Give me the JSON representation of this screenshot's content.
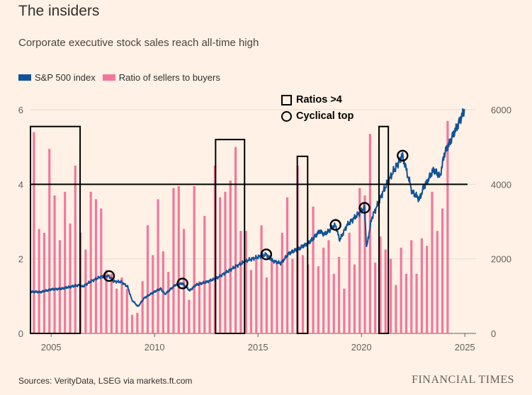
{
  "title": "The insiders",
  "subtitle": "Corporate executive stock sales reach all-time high",
  "legend": {
    "sp500": "S&P 500 index",
    "ratio": "Ratio of sellers to buyers"
  },
  "annotations": {
    "boxes": "Ratios >4",
    "circles": "Cyclical top"
  },
  "source": "Sources: VerityData, LSEG via markets.ft.com",
  "brand": "FINANCIAL TIMES",
  "colors": {
    "background": "#FFF1E5",
    "sp500": "#0F5499",
    "ratio": "#F2779C",
    "annotation": "#000000"
  },
  "chart_data": {
    "type": "bar+line",
    "x_ticks": [
      "2005",
      "2010",
      "2015",
      "2020",
      "2025"
    ],
    "x_range": [
      2004.0,
      2025.5
    ],
    "y_left": {
      "ticks": [
        "0",
        "2",
        "4",
        "6"
      ],
      "range": [
        0,
        6
      ]
    },
    "y_right": {
      "ticks": [
        "0",
        "2000",
        "4000",
        "6000"
      ],
      "range": [
        0,
        6000
      ]
    },
    "reference_line": 4,
    "grid": true,
    "ratio_series": {
      "name": "Ratio of sellers to buyers",
      "start": 2004.167,
      "step": 0.25,
      "values": [
        5.4,
        2.8,
        2.7,
        4.95,
        3.7,
        2.5,
        3.8,
        2.95,
        4.5,
        2.7,
        2.25,
        3.8,
        3.6,
        3.35,
        1.7,
        1.6,
        1.2,
        1.5,
        1.2,
        0.5,
        0.55,
        1.4,
        2.9,
        2.1,
        3.6,
        2.2,
        1.65,
        3.9,
        3.95,
        2.8,
        0.9,
        3.95,
        1.4,
        3.15,
        1.4,
        4.5,
        3.65,
        3.8,
        4.1,
        5.0,
        2.75,
        2.75,
        1.7,
        2.05,
        2.9,
        1.5,
        2.0,
        1.9,
        2.7,
        3.65,
        2.0,
        4.5,
        2.1,
        1.85,
        3.4,
        1.8,
        2.3,
        2.5,
        1.6,
        2.05,
        1.2,
        2.7,
        1.85,
        3.9,
        3.7,
        5.35,
        1.9,
        2.6,
        2.25,
        2.0,
        1.3,
        2.3,
        1.6,
        2.5,
        1.6,
        2.55,
        2.35,
        3.8,
        2.75,
        3.35,
        5.7
      ]
    },
    "sp500_series": {
      "name": "S&P 500 index",
      "points": [
        [
          2004.0,
          1120
        ],
        [
          2004.5,
          1110
        ],
        [
          2005.0,
          1180
        ],
        [
          2005.5,
          1200
        ],
        [
          2006.0,
          1260
        ],
        [
          2006.4,
          1300
        ],
        [
          2006.5,
          1250
        ],
        [
          2007.0,
          1420
        ],
        [
          2007.4,
          1520
        ],
        [
          2007.8,
          1540
        ],
        [
          2008.0,
          1400
        ],
        [
          2008.4,
          1380
        ],
        [
          2008.7,
          1250
        ],
        [
          2008.9,
          900
        ],
        [
          2009.2,
          720
        ],
        [
          2009.5,
          950
        ],
        [
          2010.0,
          1120
        ],
        [
          2010.3,
          1200
        ],
        [
          2010.5,
          1050
        ],
        [
          2011.0,
          1300
        ],
        [
          2011.35,
          1340
        ],
        [
          2011.7,
          1150
        ],
        [
          2012.0,
          1300
        ],
        [
          2012.5,
          1380
        ],
        [
          2013.0,
          1480
        ],
        [
          2013.5,
          1650
        ],
        [
          2014.0,
          1820
        ],
        [
          2014.5,
          1960
        ],
        [
          2015.0,
          2050
        ],
        [
          2015.4,
          2120
        ],
        [
          2015.7,
          1950
        ],
        [
          2016.1,
          1880
        ],
        [
          2016.5,
          2150
        ],
        [
          2017.0,
          2280
        ],
        [
          2017.5,
          2450
        ],
        [
          2018.0,
          2750
        ],
        [
          2018.2,
          2650
        ],
        [
          2018.75,
          2910
        ],
        [
          2018.95,
          2500
        ],
        [
          2019.3,
          2900
        ],
        [
          2019.9,
          3230
        ],
        [
          2020.15,
          3370
        ],
        [
          2020.25,
          2300
        ],
        [
          2020.5,
          3100
        ],
        [
          2020.9,
          3600
        ],
        [
          2021.0,
          3750
        ],
        [
          2021.5,
          4300
        ],
        [
          2021.99,
          4770
        ],
        [
          2022.45,
          3800
        ],
        [
          2022.8,
          3600
        ],
        [
          2023.0,
          3900
        ],
        [
          2023.5,
          4400
        ],
        [
          2023.8,
          4200
        ],
        [
          2024.0,
          4800
        ],
        [
          2024.5,
          5400
        ],
        [
          2024.9,
          5880
        ],
        [
          2025.0,
          6000
        ]
      ]
    },
    "boxes": [
      [
        2004.0,
        2006.4,
        5.55
      ],
      [
        2012.95,
        2014.35,
        5.2
      ],
      [
        2016.9,
        2017.4,
        4.75
      ],
      [
        2020.85,
        2021.3,
        5.55
      ]
    ],
    "circles": [
      [
        2007.8,
        1540
      ],
      [
        2011.35,
        1340
      ],
      [
        2015.4,
        2120
      ],
      [
        2018.75,
        2910
      ],
      [
        2020.15,
        3370
      ],
      [
        2021.99,
        4770
      ]
    ]
  }
}
